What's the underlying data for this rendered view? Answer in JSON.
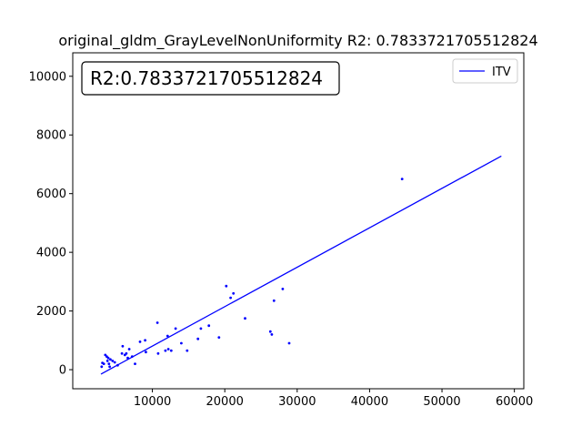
{
  "chart_data": {
    "type": "scatter",
    "title": "original_gldm_GrayLevelNonUniformity R2: 0.7833721705512824",
    "annotation": "R2:0.7833721705512824",
    "xlabel": "",
    "ylabel": "",
    "xlim": [
      -1000,
      61300
    ],
    "ylim": [
      -650,
      10800
    ],
    "xticks": [
      10000,
      20000,
      30000,
      40000,
      50000,
      60000
    ],
    "xtick_labels": [
      "10000",
      "20000",
      "30000",
      "40000",
      "50000",
      "60000"
    ],
    "yticks": [
      0,
      2000,
      4000,
      6000,
      8000,
      10000
    ],
    "ytick_labels": [
      "0",
      "2000",
      "4000",
      "6000",
      "8000",
      "10000"
    ],
    "grid": false,
    "legend": {
      "position": "top-right",
      "entries": [
        "ITV"
      ]
    },
    "series": [
      {
        "name": "ITV",
        "type": "scatter",
        "color": "#0000ff",
        "points": [
          [
            3000,
            100
          ],
          [
            3100,
            230
          ],
          [
            3300,
            200
          ],
          [
            3500,
            500
          ],
          [
            3700,
            450
          ],
          [
            3800,
            300
          ],
          [
            3900,
            400
          ],
          [
            4000,
            200
          ],
          [
            4100,
            100
          ],
          [
            4200,
            350
          ],
          [
            4500,
            300
          ],
          [
            4800,
            250
          ],
          [
            5200,
            150
          ],
          [
            5800,
            550
          ],
          [
            5900,
            800
          ],
          [
            6200,
            500
          ],
          [
            6400,
            550
          ],
          [
            6600,
            400
          ],
          [
            6800,
            700
          ],
          [
            7200,
            450
          ],
          [
            7600,
            200
          ],
          [
            8300,
            950
          ],
          [
            9000,
            1000
          ],
          [
            9100,
            600
          ],
          [
            10700,
            1600
          ],
          [
            10800,
            550
          ],
          [
            11800,
            650
          ],
          [
            12100,
            1150
          ],
          [
            12200,
            700
          ],
          [
            12600,
            650
          ],
          [
            13200,
            1400
          ],
          [
            14000,
            900
          ],
          [
            14800,
            650
          ],
          [
            16300,
            1050
          ],
          [
            16700,
            1400
          ],
          [
            17800,
            1500
          ],
          [
            19200,
            1100
          ],
          [
            20200,
            2850
          ],
          [
            20800,
            2450
          ],
          [
            21200,
            2600
          ],
          [
            22800,
            1750
          ],
          [
            26300,
            1300
          ],
          [
            26500,
            1200
          ],
          [
            26800,
            2350
          ],
          [
            28000,
            2750
          ],
          [
            28900,
            900
          ],
          [
            44500,
            6500
          ]
        ]
      },
      {
        "name": "ITV",
        "type": "line",
        "color": "#0000ff",
        "points": [
          [
            2900,
            -150
          ],
          [
            58200,
            7280
          ]
        ]
      }
    ]
  }
}
